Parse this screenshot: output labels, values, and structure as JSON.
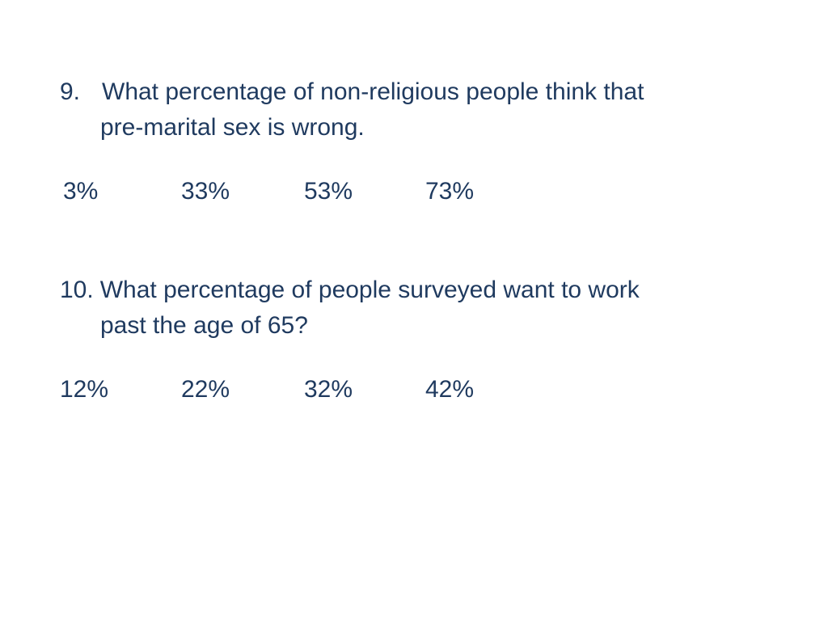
{
  "questions": [
    {
      "number": "9.",
      "line1": "What percentage of non-religious people think that",
      "line2": "pre-marital sex is wrong.",
      "options": [
        " 3%",
        "33%",
        "53%",
        "73%"
      ]
    },
    {
      "number": "10.",
      "line1": "What percentage of people surveyed want to work",
      "line2": "past the age of 65?",
      "options": [
        "12%",
        "22%",
        "32%",
        "42%"
      ]
    }
  ],
  "colors": {
    "text": "#1f3a5f",
    "background": "#ffffff"
  }
}
